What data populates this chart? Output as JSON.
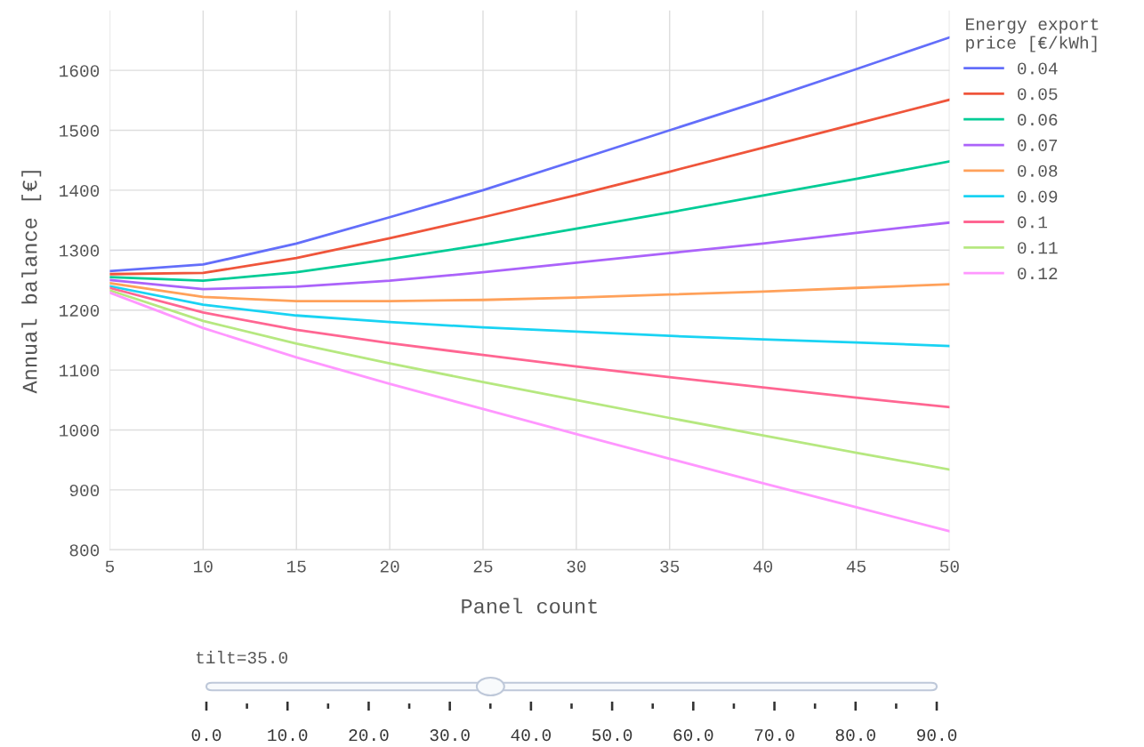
{
  "chart_data": {
    "type": "line",
    "xlabel": "Panel count",
    "ylabel": "Annual balance [€]",
    "legend_title": "Energy export\nprice [€/kWh]",
    "x": [
      5,
      10,
      15,
      20,
      25,
      30,
      35,
      40,
      45,
      50
    ],
    "xlim": [
      5,
      50
    ],
    "xticks": [
      5,
      10,
      15,
      20,
      25,
      30,
      35,
      40,
      45,
      50
    ],
    "ylim": [
      800,
      1700
    ],
    "yticks": [
      800,
      900,
      1000,
      1100,
      1200,
      1300,
      1400,
      1500,
      1600
    ],
    "grid": true,
    "legend": "right",
    "marker": "none",
    "line_style": "solid",
    "annotations": [
      "tilt=35.0",
      "0.0",
      "10.0",
      "20.0",
      "30.0",
      "40.0",
      "50.0",
      "60.0",
      "70.0",
      "80.0",
      "90.0"
    ],
    "series": [
      {
        "name": "0.04",
        "color": "#636efa",
        "values": [
          1265,
          1276,
          1311,
          1355,
          1400,
          1450,
          1500,
          1550,
          1602,
          1655
        ]
      },
      {
        "name": "0.05",
        "color": "#ef553b",
        "values": [
          1260,
          1262,
          1287,
          1320,
          1355,
          1392,
          1431,
          1471,
          1511,
          1551
        ]
      },
      {
        "name": "0.06",
        "color": "#00cc96",
        "values": [
          1255,
          1249,
          1263,
          1285,
          1309,
          1336,
          1363,
          1391,
          1419,
          1448
        ]
      },
      {
        "name": "0.07",
        "color": "#ab63fa",
        "values": [
          1250,
          1235,
          1239,
          1249,
          1263,
          1279,
          1295,
          1311,
          1329,
          1346
        ]
      },
      {
        "name": "0.08",
        "color": "#ffa15a",
        "values": [
          1245,
          1222,
          1215,
          1215,
          1217,
          1221,
          1226,
          1231,
          1237,
          1243
        ]
      },
      {
        "name": "0.09",
        "color": "#19d3f3",
        "values": [
          1240,
          1209,
          1191,
          1180,
          1171,
          1164,
          1157,
          1151,
          1146,
          1140
        ]
      },
      {
        "name": "0.1",
        "color": "#ff6692",
        "values": [
          1237,
          1196,
          1167,
          1145,
          1125,
          1106,
          1088,
          1071,
          1054,
          1038
        ]
      },
      {
        "name": "0.11",
        "color": "#b6e880",
        "values": [
          1233,
          1182,
          1144,
          1111,
          1080,
          1050,
          1020,
          991,
          962,
          934
        ]
      },
      {
        "name": "0.12",
        "color": "#ff97ff",
        "values": [
          1229,
          1170,
          1121,
          1077,
          1035,
          993,
          952,
          911,
          871,
          831
        ]
      }
    ]
  }
}
